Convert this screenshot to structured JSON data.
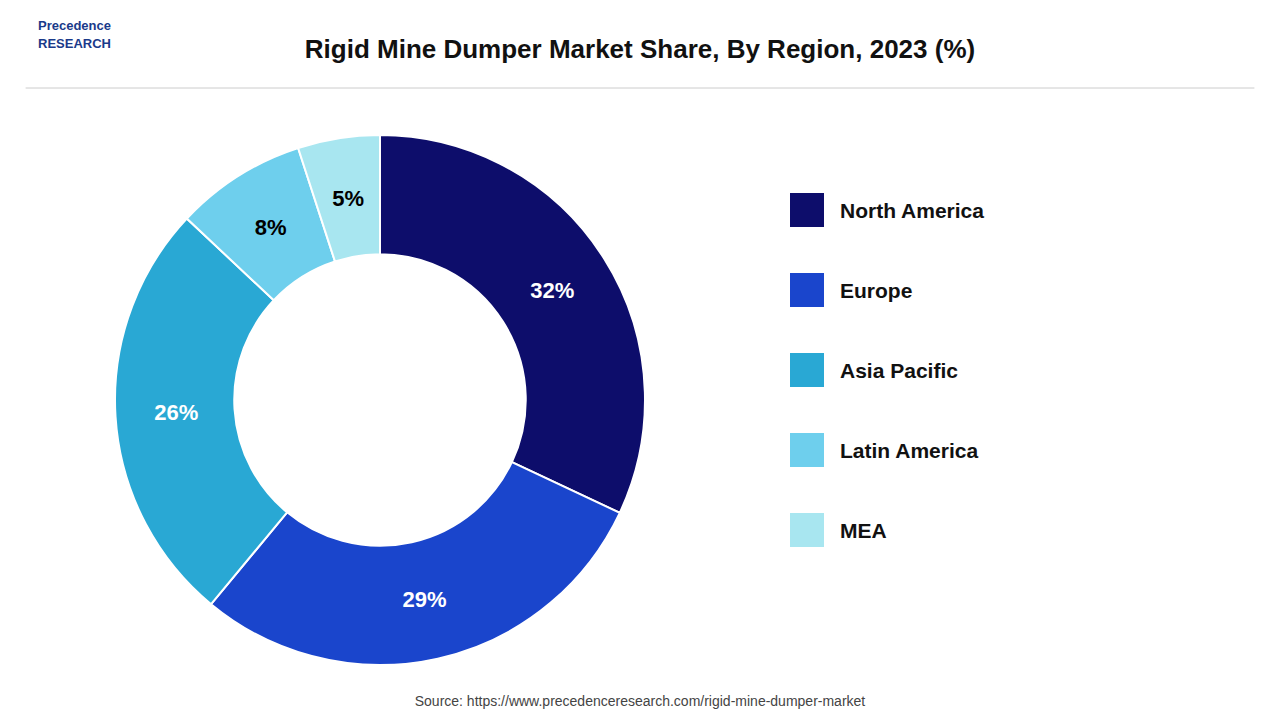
{
  "chart_data": {
    "type": "donut",
    "title": "Rigid Mine Dumper Market Share, By Region, 2023 (%)",
    "categories": [
      "North America",
      "Europe",
      "Asia Pacific",
      "Latin America",
      "MEA"
    ],
    "values": [
      32,
      29,
      26,
      8,
      5
    ],
    "value_labels": [
      "32%",
      "29%",
      "26%",
      "8%",
      "5%"
    ],
    "colors": [
      "#0d0d6b",
      "#1a45cc",
      "#29a8d4",
      "#6ecfed",
      "#a8e6f0"
    ],
    "data_labels": true,
    "legend": "right",
    "annotations": [
      "Source: https://www.precedenceresearch.com/rigid-mine-dumper-market",
      "Precedence\nRESEARCH"
    ]
  }
}
